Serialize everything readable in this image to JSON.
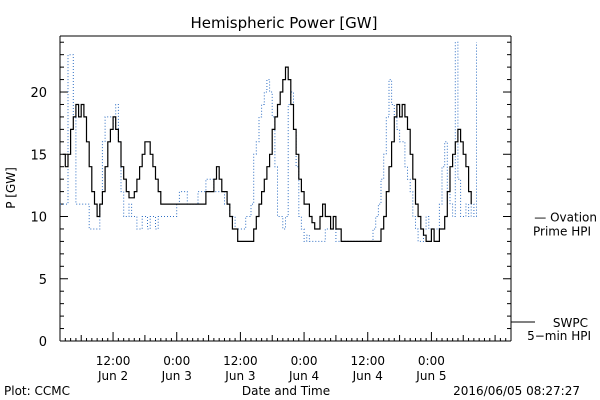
{
  "chart_data": {
    "type": "line",
    "title": "Hemispheric Power [GW]",
    "xlabel": "Date and Time",
    "ylabel": "P [GW]",
    "ylim": [
      0,
      24.5
    ],
    "y_ticks": [
      0,
      5,
      10,
      15,
      20
    ],
    "x_ticks": [
      {
        "hour": 12,
        "time": "12:00",
        "date": "Jun 2"
      },
      {
        "hour": 24,
        "time": "0:00",
        "date": "Jun 3"
      },
      {
        "hour": 36,
        "time": "12:00",
        "date": "Jun 3"
      },
      {
        "hour": 48,
        "time": "0:00",
        "date": "Jun 4"
      },
      {
        "hour": 60,
        "time": "12:00",
        "date": "Jun 4"
      },
      {
        "hour": 72,
        "time": "0:00",
        "date": "Jun 5"
      }
    ],
    "x_range_hours": [
      2,
      87
    ],
    "series": [
      {
        "name": "SWPC 5-min HPI",
        "color": "#000000",
        "style": "solid",
        "points": [
          [
            2.5,
            15
          ],
          [
            3.0,
            14
          ],
          [
            3.5,
            15
          ],
          [
            4.0,
            17
          ],
          [
            4.5,
            18
          ],
          [
            5.0,
            19
          ],
          [
            5.5,
            18
          ],
          [
            6.0,
            19
          ],
          [
            6.5,
            18
          ],
          [
            7.0,
            16
          ],
          [
            7.5,
            14
          ],
          [
            8.0,
            12
          ],
          [
            8.5,
            11
          ],
          [
            9.0,
            10
          ],
          [
            9.5,
            11
          ],
          [
            10.0,
            12
          ],
          [
            10.5,
            14
          ],
          [
            11.0,
            16
          ],
          [
            11.5,
            17
          ],
          [
            12.0,
            18
          ],
          [
            12.5,
            17
          ],
          [
            13.0,
            16
          ],
          [
            13.5,
            14
          ],
          [
            14.0,
            13
          ],
          [
            14.5,
            12
          ],
          [
            15.0,
            11.5
          ],
          [
            15.5,
            11.5
          ],
          [
            16.0,
            12
          ],
          [
            16.5,
            13
          ],
          [
            17.0,
            14
          ],
          [
            17.5,
            15
          ],
          [
            18.0,
            16
          ],
          [
            18.5,
            16
          ],
          [
            19.0,
            15
          ],
          [
            19.5,
            14
          ],
          [
            20.0,
            13
          ],
          [
            20.5,
            12
          ],
          [
            21.0,
            11
          ],
          [
            21.5,
            11
          ],
          [
            22.0,
            11
          ],
          [
            23.0,
            11
          ],
          [
            24.0,
            11
          ],
          [
            25.0,
            11
          ],
          [
            26.0,
            11
          ],
          [
            27.0,
            11
          ],
          [
            28.0,
            11
          ],
          [
            29.0,
            11
          ],
          [
            29.5,
            12
          ],
          [
            30.0,
            12
          ],
          [
            30.5,
            12
          ],
          [
            31.0,
            13
          ],
          [
            31.5,
            14
          ],
          [
            32.0,
            13
          ],
          [
            32.5,
            12
          ],
          [
            33.0,
            12
          ],
          [
            33.5,
            11
          ],
          [
            34.0,
            10
          ],
          [
            34.5,
            9
          ],
          [
            35.0,
            9
          ],
          [
            35.5,
            8
          ],
          [
            36.0,
            8
          ],
          [
            37.0,
            8
          ],
          [
            38.0,
            8
          ],
          [
            38.5,
            9
          ],
          [
            39.0,
            10
          ],
          [
            39.5,
            11
          ],
          [
            40.0,
            12
          ],
          [
            40.5,
            13
          ],
          [
            41.0,
            14
          ],
          [
            41.5,
            15
          ],
          [
            42.0,
            17
          ],
          [
            42.5,
            18
          ],
          [
            43.0,
            19
          ],
          [
            43.5,
            20
          ],
          [
            44.0,
            21
          ],
          [
            44.5,
            22
          ],
          [
            45.0,
            21
          ],
          [
            45.5,
            19
          ],
          [
            46.0,
            17
          ],
          [
            46.5,
            15
          ],
          [
            47.0,
            13
          ],
          [
            47.5,
            12
          ],
          [
            48.0,
            11
          ],
          [
            48.5,
            11
          ],
          [
            49.0,
            10
          ],
          [
            49.5,
            9.5
          ],
          [
            50.0,
            9
          ],
          [
            50.5,
            9
          ],
          [
            51.0,
            10
          ],
          [
            51.5,
            11
          ],
          [
            52.0,
            10
          ],
          [
            52.5,
            10
          ],
          [
            53.0,
            9
          ],
          [
            53.5,
            10
          ],
          [
            54.0,
            9
          ],
          [
            54.5,
            9
          ],
          [
            55.0,
            8
          ],
          [
            56.0,
            8
          ],
          [
            57.0,
            8
          ],
          [
            58.0,
            8
          ],
          [
            59.0,
            8
          ],
          [
            60.0,
            8
          ],
          [
            61.0,
            8
          ],
          [
            62.0,
            8
          ],
          [
            62.5,
            9
          ],
          [
            63.0,
            10
          ],
          [
            63.5,
            12
          ],
          [
            64.0,
            14
          ],
          [
            64.5,
            16
          ],
          [
            65.0,
            18
          ],
          [
            65.5,
            19
          ],
          [
            66.0,
            18
          ],
          [
            66.5,
            19
          ],
          [
            67.0,
            18
          ],
          [
            67.5,
            17
          ],
          [
            68.0,
            15
          ],
          [
            68.5,
            13
          ],
          [
            69.0,
            11
          ],
          [
            69.5,
            10
          ],
          [
            70.0,
            9
          ],
          [
            70.5,
            8.5
          ],
          [
            71.0,
            8
          ],
          [
            71.5,
            8
          ],
          [
            72.0,
            9
          ],
          [
            72.5,
            8
          ],
          [
            73.0,
            8
          ],
          [
            73.5,
            9
          ],
          [
            74.0,
            9
          ],
          [
            74.5,
            10
          ],
          [
            75.0,
            12
          ],
          [
            75.5,
            14
          ],
          [
            76.0,
            15
          ],
          [
            76.5,
            16
          ],
          [
            77.0,
            17
          ],
          [
            77.5,
            16
          ],
          [
            78.0,
            15
          ],
          [
            78.5,
            14
          ],
          [
            79.0,
            12
          ],
          [
            79.5,
            11
          ]
        ]
      },
      {
        "name": "Ovation Prime HPI",
        "color": "#2f6fc4",
        "style": "dotted",
        "points": [
          [
            2.0,
            11
          ],
          [
            3.0,
            11
          ],
          [
            3.5,
            23
          ],
          [
            4.0,
            23
          ],
          [
            4.5,
            18
          ],
          [
            5.0,
            11
          ],
          [
            6.0,
            11
          ],
          [
            7.0,
            11
          ],
          [
            7.5,
            9
          ],
          [
            8.0,
            9
          ],
          [
            9.0,
            9
          ],
          [
            9.5,
            11
          ],
          [
            10.0,
            16
          ],
          [
            10.5,
            18
          ],
          [
            11.0,
            18
          ],
          [
            11.5,
            18
          ],
          [
            12.0,
            17
          ],
          [
            12.5,
            19
          ],
          [
            13.0,
            16
          ],
          [
            13.5,
            12
          ],
          [
            14.0,
            10
          ],
          [
            14.5,
            10
          ],
          [
            15.0,
            11
          ],
          [
            15.5,
            10
          ],
          [
            16.0,
            10
          ],
          [
            16.5,
            9
          ],
          [
            17.0,
            9
          ],
          [
            17.5,
            10
          ],
          [
            18.0,
            10
          ],
          [
            18.5,
            9
          ],
          [
            19.0,
            10
          ],
          [
            19.5,
            10
          ],
          [
            20.0,
            9
          ],
          [
            20.5,
            10
          ],
          [
            21.0,
            10
          ],
          [
            22.0,
            10
          ],
          [
            23.0,
            10
          ],
          [
            24.0,
            11
          ],
          [
            24.5,
            12
          ],
          [
            25.0,
            12
          ],
          [
            26.0,
            11
          ],
          [
            27.0,
            11
          ],
          [
            28.0,
            12
          ],
          [
            29.0,
            12
          ],
          [
            29.5,
            13
          ],
          [
            30.0,
            13
          ],
          [
            31.0,
            12
          ],
          [
            32.0,
            12
          ],
          [
            33.0,
            11
          ],
          [
            34.0,
            10
          ],
          [
            35.0,
            9
          ],
          [
            36.0,
            9
          ],
          [
            37.0,
            10
          ],
          [
            38.0,
            11
          ],
          [
            38.5,
            15
          ],
          [
            39.0,
            16
          ],
          [
            39.5,
            18
          ],
          [
            40.0,
            19
          ],
          [
            40.5,
            20
          ],
          [
            41.0,
            21
          ],
          [
            41.5,
            20
          ],
          [
            42.0,
            18
          ],
          [
            42.5,
            14
          ],
          [
            43.0,
            10
          ],
          [
            44.0,
            9
          ],
          [
            44.5,
            10
          ],
          [
            45.0,
            19
          ],
          [
            45.5,
            20
          ],
          [
            46.0,
            17
          ],
          [
            46.5,
            14
          ],
          [
            47.0,
            10
          ],
          [
            47.5,
            9
          ],
          [
            48.0,
            8
          ],
          [
            48.5,
            8.5
          ],
          [
            49.0,
            8
          ],
          [
            50.0,
            8
          ],
          [
            51.0,
            8
          ],
          [
            52.0,
            9
          ],
          [
            53.0,
            9
          ],
          [
            54.0,
            8
          ],
          [
            55.0,
            8
          ],
          [
            56.0,
            8
          ],
          [
            57.0,
            8
          ],
          [
            58.0,
            8
          ],
          [
            59.0,
            8
          ],
          [
            60.0,
            8
          ],
          [
            61.0,
            9
          ],
          [
            61.5,
            10
          ],
          [
            62.0,
            11
          ],
          [
            62.5,
            13
          ],
          [
            63.0,
            15
          ],
          [
            63.5,
            18
          ],
          [
            64.0,
            21
          ],
          [
            64.5,
            19
          ],
          [
            65.0,
            18
          ],
          [
            65.5,
            17
          ],
          [
            66.0,
            16
          ],
          [
            66.5,
            16
          ],
          [
            67.0,
            14
          ],
          [
            67.5,
            13
          ],
          [
            68.0,
            12
          ],
          [
            68.5,
            10
          ],
          [
            69.0,
            9
          ],
          [
            69.5,
            8
          ],
          [
            70.0,
            8
          ],
          [
            70.5,
            9
          ],
          [
            71.0,
            10
          ],
          [
            71.5,
            9
          ],
          [
            72.0,
            9
          ],
          [
            73.0,
            9
          ],
          [
            73.5,
            11
          ],
          [
            74.0,
            14
          ],
          [
            74.5,
            16
          ],
          [
            75.0,
            12
          ],
          [
            75.5,
            11
          ],
          [
            76.0,
            10
          ],
          [
            76.5,
            24
          ],
          [
            77.0,
            13
          ],
          [
            77.5,
            10
          ],
          [
            78.0,
            10
          ],
          [
            78.5,
            11
          ],
          [
            79.0,
            10
          ],
          [
            79.5,
            11
          ],
          [
            80.0,
            10
          ],
          [
            80.5,
            24
          ]
        ]
      }
    ],
    "legend": [
      {
        "label": [
          "— Ovation",
          "Prime HPI"
        ],
        "color": "#2f6fc4",
        "placement": "right, at P=10"
      },
      {
        "label": [
          "SWPC",
          "5−min HPI"
        ],
        "color": "#000000",
        "placement": "right, at P=0"
      }
    ],
    "grid": false
  },
  "footer": {
    "left": "Plot: CCMC",
    "right": "2016/06/05 08:27:27"
  }
}
